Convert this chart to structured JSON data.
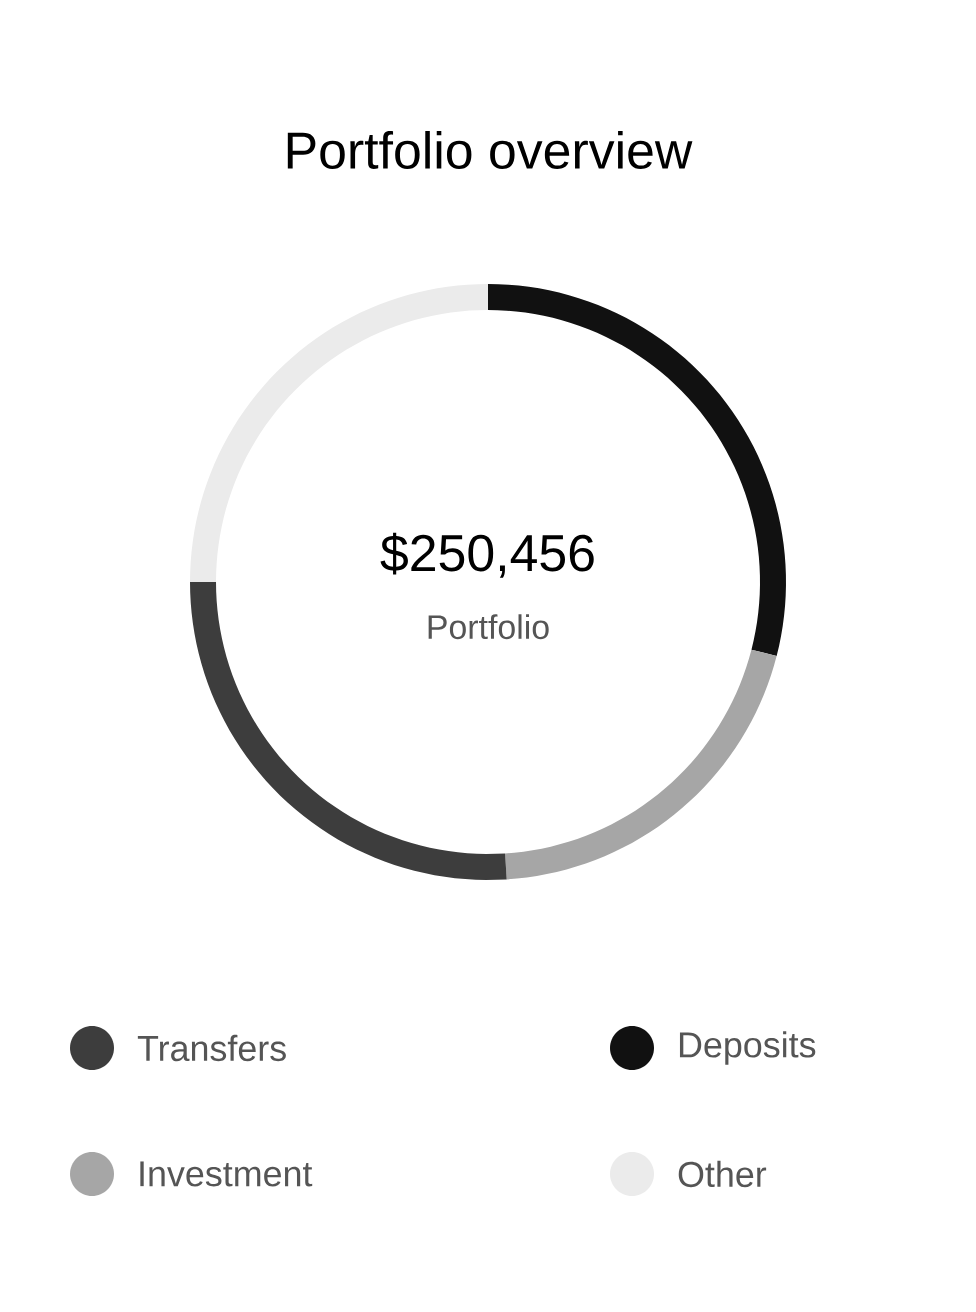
{
  "chart_data": {
    "type": "donut",
    "title": "Portfolio overview",
    "categories": [
      "Deposits",
      "Investment",
      "Transfers",
      "Other"
    ],
    "values": [
      29,
      20,
      26,
      25
    ],
    "colors": [
      "#111111",
      "#a6a6a6",
      "#3d3d3d",
      "#ebebeb"
    ],
    "annotations": [
      "$250,456",
      "Portfolio"
    ],
    "legend": "bottom"
  }
}
